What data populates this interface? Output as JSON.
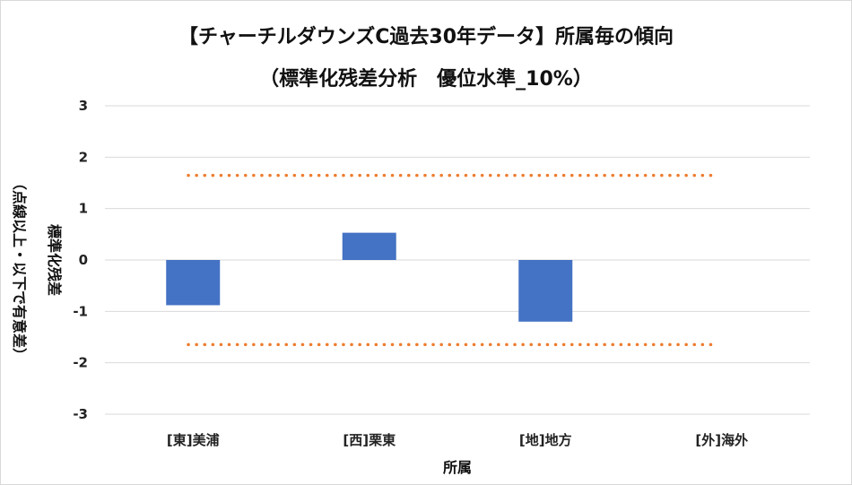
{
  "chart_data": {
    "type": "bar",
    "title_line1": "【チャーチルダウンズC過去30年データ】所属毎の傾向",
    "title_line2": "（標準化残差分析　優位水準_10%）",
    "xlabel": "所属",
    "ylabel_main": "標準化残差",
    "ylabel_sub": "（点線以上・以下で有意差）",
    "categories": [
      "[東]美浦",
      "[西]栗東",
      "[地]地方",
      "[外]海外"
    ],
    "values": [
      -0.88,
      0.53,
      -1.2,
      0
    ],
    "ylim": [
      -3,
      3
    ],
    "yticks": [
      "3",
      "2",
      "1",
      "0",
      "-1",
      "-2",
      "-3"
    ],
    "thresholds": [
      1.645,
      -1.645
    ],
    "grid": true,
    "colors": {
      "bar": "#4472c4",
      "threshold": "#ed7d31",
      "grid": "#d9d9d9"
    }
  }
}
